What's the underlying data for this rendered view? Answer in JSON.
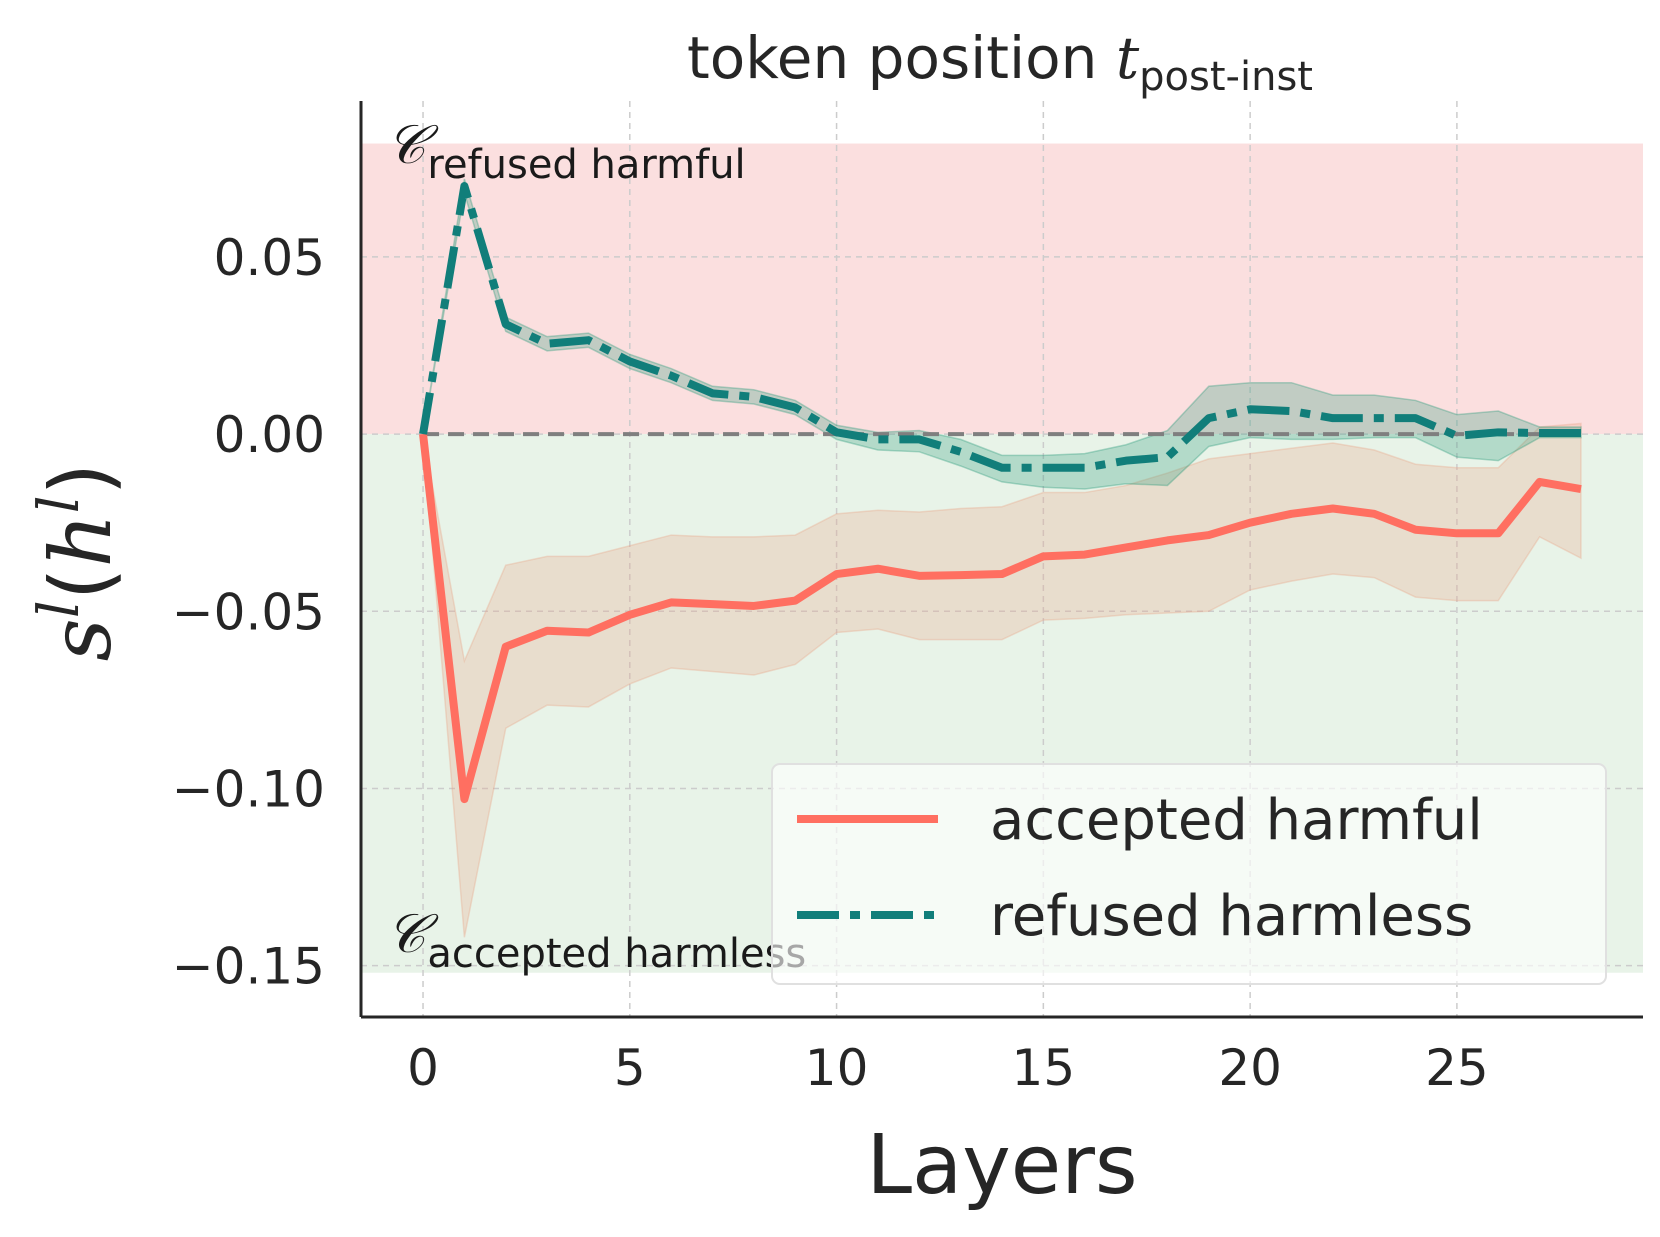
{
  "chart_data": {
    "type": "line",
    "title": {
      "text": "token position ",
      "t_symbol": "t",
      "subscript": "post-inst"
    },
    "xlabel": "Layers",
    "ylabel": {
      "s": "s",
      "sup1": "l",
      "open": "(",
      "h": "h",
      "sup2": "l",
      "close": ")"
    },
    "xlim": [
      -1.5,
      29.5
    ],
    "ylim": [
      -0.1645,
      0.094
    ],
    "xticks": [
      0,
      5,
      10,
      15,
      20,
      25
    ],
    "xtick_labels": [
      "0",
      "5",
      "10",
      "15",
      "20",
      "25"
    ],
    "yticks": [
      0.05,
      0.0,
      -0.05,
      -0.1,
      -0.15
    ],
    "ytick_labels": [
      "0.05",
      "0.00",
      "−0.05",
      "−0.10",
      "−0.15"
    ],
    "regions": [
      {
        "name": "refused harmful",
        "y0": 0.0,
        "y1": 0.082,
        "color": "#f8c4c4",
        "c_symbol": "𝒞",
        "label": "refused harmful"
      },
      {
        "name": "accepted harmless",
        "y0": -0.152,
        "y1": 0.0,
        "color": "#d6ead6",
        "c_symbol": "𝒞",
        "label": "accepted harmless"
      }
    ],
    "zero_line": 0.0,
    "series": [
      {
        "name": "accepted harmful",
        "color": "#ff6f61",
        "style": "solid",
        "x": [
          0,
          1,
          2,
          3,
          4,
          5,
          6,
          7,
          8,
          9,
          10,
          11,
          12,
          13,
          14,
          15,
          16,
          17,
          18,
          19,
          20,
          21,
          22,
          23,
          24,
          25,
          26,
          27,
          28
        ],
        "values": [
          0.0,
          -0.103,
          -0.06,
          -0.0555,
          -0.056,
          -0.051,
          -0.0475,
          -0.048,
          -0.0485,
          -0.047,
          -0.0395,
          -0.038,
          -0.04,
          -0.0398,
          -0.0395,
          -0.0345,
          -0.034,
          -0.032,
          -0.03,
          -0.0285,
          -0.025,
          -0.0225,
          -0.021,
          -0.0225,
          -0.027,
          -0.028,
          -0.028,
          -0.0135,
          -0.0155
        ],
        "lower": [
          0.0,
          -0.142,
          -0.083,
          -0.0765,
          -0.077,
          -0.0705,
          -0.066,
          -0.067,
          -0.068,
          -0.065,
          -0.056,
          -0.055,
          -0.058,
          -0.058,
          -0.058,
          -0.0525,
          -0.052,
          -0.051,
          -0.0505,
          -0.05,
          -0.044,
          -0.0415,
          -0.0395,
          -0.0405,
          -0.046,
          -0.047,
          -0.047,
          -0.029,
          -0.035
        ],
        "upper": [
          0.0,
          -0.064,
          -0.037,
          -0.0345,
          -0.0345,
          -0.0315,
          -0.0285,
          -0.029,
          -0.029,
          -0.0285,
          -0.0225,
          -0.0215,
          -0.022,
          -0.021,
          -0.0205,
          -0.0165,
          -0.0165,
          -0.0145,
          -0.011,
          -0.007,
          -0.0055,
          -0.004,
          -0.0025,
          -0.0045,
          -0.0085,
          -0.0095,
          -0.0095,
          0.002,
          0.003
        ]
      },
      {
        "name": "refused harmless",
        "color": "#117e7a",
        "style": "dashdot",
        "x": [
          0,
          1,
          2,
          3,
          4,
          5,
          6,
          7,
          8,
          9,
          10,
          11,
          12,
          13,
          14,
          15,
          16,
          17,
          18,
          19,
          20,
          21,
          22,
          23,
          24,
          25,
          26,
          27,
          28
        ],
        "values": [
          0.0,
          0.07,
          0.031,
          0.0255,
          0.0265,
          0.0205,
          0.0165,
          0.0115,
          0.0105,
          0.0075,
          0.0005,
          -0.0015,
          -0.0015,
          -0.005,
          -0.0095,
          -0.0095,
          -0.0095,
          -0.0075,
          -0.0065,
          0.0045,
          0.007,
          0.0065,
          0.0045,
          0.0045,
          0.0045,
          -0.0005,
          0.0005,
          0.0003,
          0.0003
        ],
        "lower": [
          0.0,
          0.068,
          0.029,
          0.0235,
          0.0245,
          0.0185,
          0.0145,
          0.0095,
          0.0085,
          0.0055,
          -0.0015,
          -0.0045,
          -0.005,
          -0.009,
          -0.0135,
          -0.015,
          -0.0155,
          -0.014,
          -0.0145,
          -0.0035,
          -0.001,
          -0.0015,
          -0.0015,
          -0.001,
          -0.001,
          -0.0065,
          -0.0075,
          -0.001,
          -0.001
        ],
        "upper": [
          0.0,
          0.072,
          0.033,
          0.0275,
          0.0285,
          0.0225,
          0.0185,
          0.0135,
          0.0125,
          0.0095,
          0.0025,
          0.0005,
          0.001,
          -0.0015,
          -0.006,
          -0.006,
          -0.0055,
          -0.003,
          0.001,
          0.0135,
          0.0145,
          0.0145,
          0.011,
          0.011,
          0.0095,
          0.0055,
          0.0065,
          0.002,
          0.002
        ]
      }
    ],
    "legend": {
      "position": "lower-right",
      "entries": [
        "accepted harmful",
        "refused harmless"
      ]
    },
    "grid": true
  }
}
